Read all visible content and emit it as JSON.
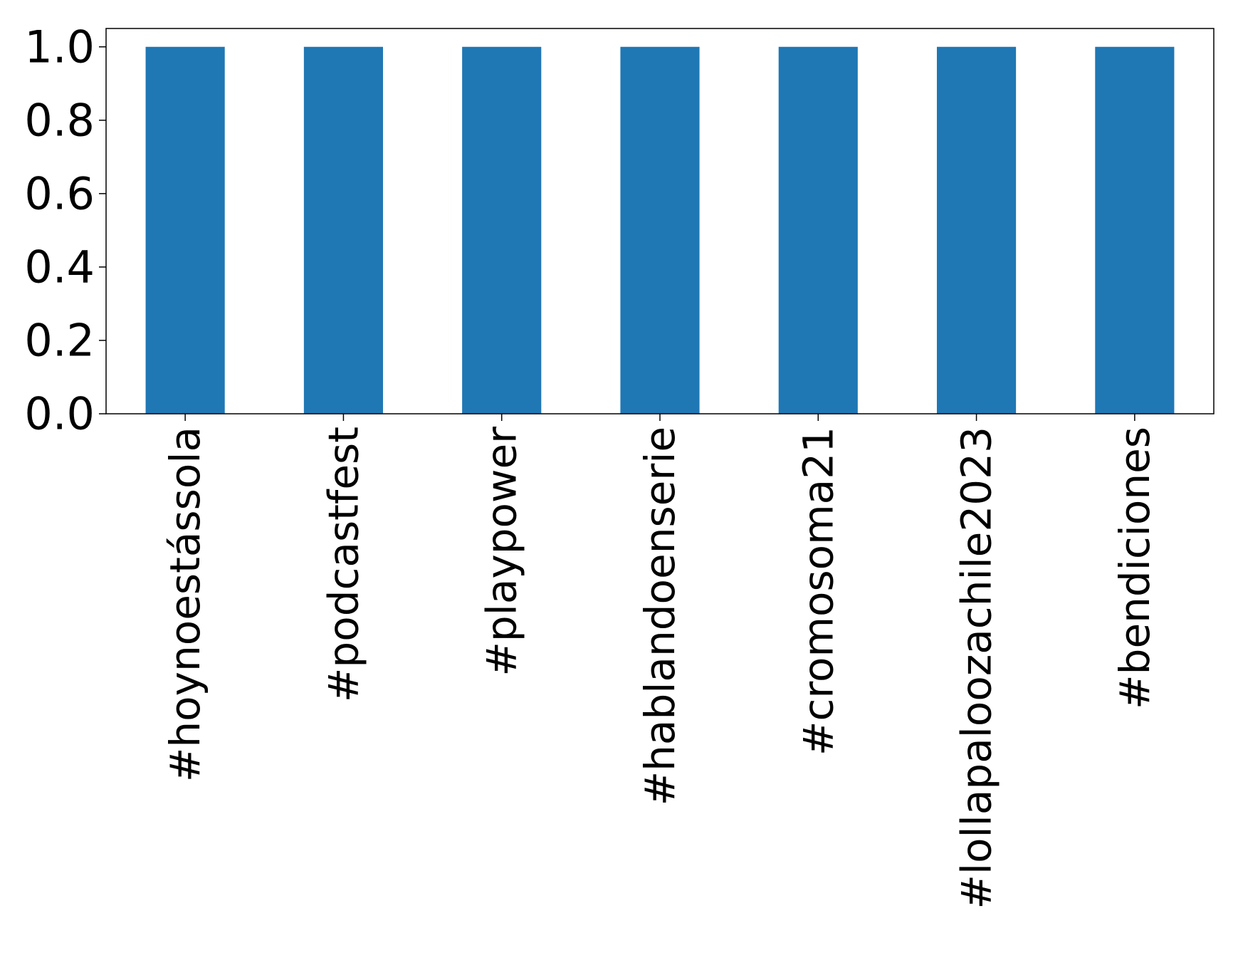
{
  "chart_data": {
    "type": "bar",
    "title": "",
    "xlabel": "",
    "ylabel": "",
    "categories": [
      "#hoynoestássola",
      "#podcastfest",
      "#playpower",
      "#hablandoenserie",
      "#cromosoma21",
      "#lollapaloozachile2023",
      "#bendiciones"
    ],
    "values": [
      1,
      1,
      1,
      1,
      1,
      1,
      1
    ],
    "ylim": [
      0,
      1.05
    ],
    "yticks": [
      0.0,
      0.2,
      0.4,
      0.6,
      0.8,
      1.0
    ],
    "ytick_labels": [
      "0.0",
      "0.2",
      "0.4",
      "0.6",
      "0.8",
      "1.0"
    ],
    "grid": false,
    "legend": "none",
    "bar_color": "#1f77b4",
    "axis_color": "#000000",
    "background": "#ffffff"
  }
}
